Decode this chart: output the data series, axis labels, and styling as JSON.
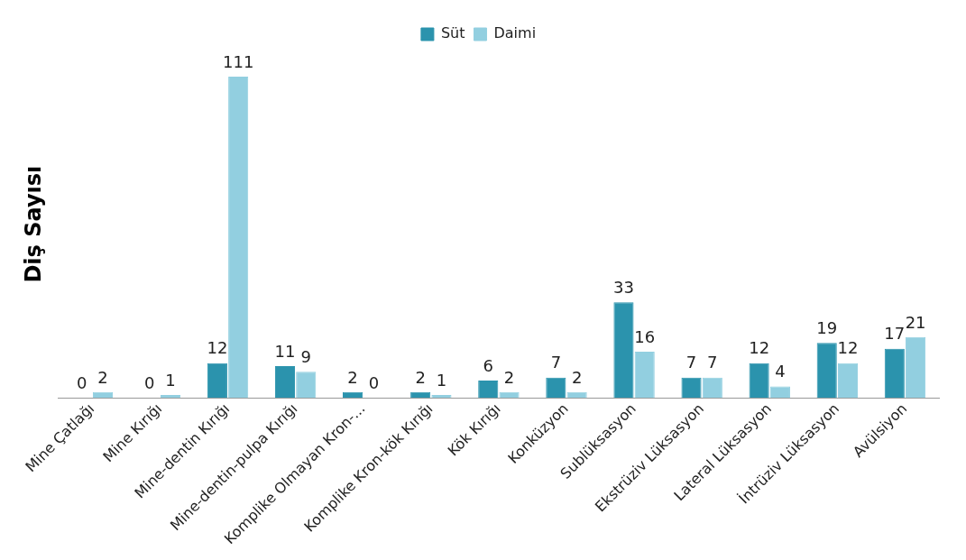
{
  "chart_data": {
    "type": "bar",
    "ylabel": "Diş Sayısı",
    "categories": [
      "Mine Çatlağı",
      "Mine Kırığı",
      "Mine-dentin Kırığı",
      "Mine-dentin-pulpa Kırığı",
      "Komplike Olmayan Kron-...",
      "Komplike Kron-kök Kırığı",
      "Kök Kırığı",
      "Konküzyon",
      "Sublüksasyon",
      "Ekstrüziv Lüksasyon",
      "Lateral Lüksasyon",
      "İntrüziv Lüksasyon",
      "Avülsiyon"
    ],
    "series": [
      {
        "name": "Süt",
        "color": "#2b93ad",
        "values": [
          0,
          0,
          12,
          11,
          2,
          2,
          6,
          7,
          33,
          7,
          12,
          19,
          17
        ]
      },
      {
        "name": "Daimi",
        "color": "#92cfe0",
        "values": [
          2,
          1,
          111,
          9,
          0,
          1,
          2,
          2,
          16,
          7,
          4,
          12,
          21
        ]
      }
    ],
    "data_labels": true,
    "legend": "top",
    "grid": false
  }
}
